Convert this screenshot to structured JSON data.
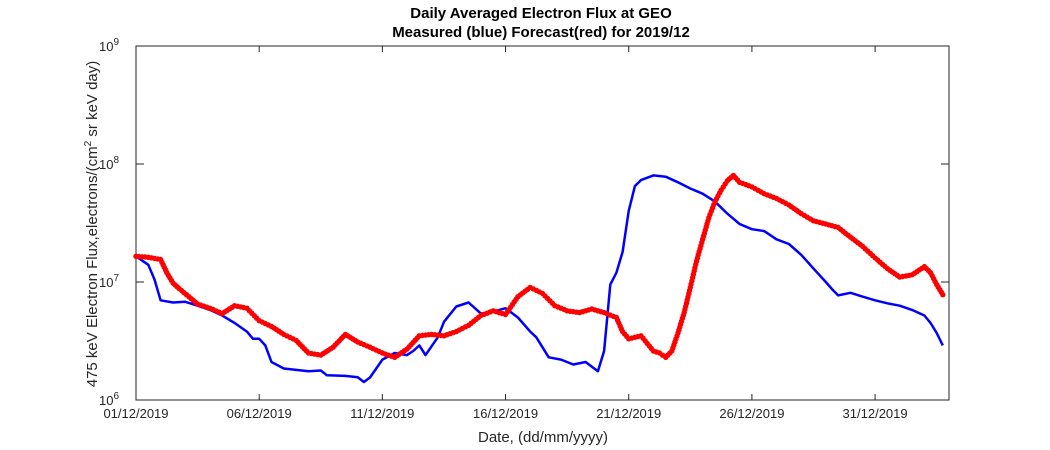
{
  "chart_data": {
    "type": "line",
    "title": "Daily Averaged Electron Flux at GEO",
    "subtitle": "Measured (blue) Forecast(red) for 2019/12",
    "xlabel": "Date, (dd/mm/yyyy)",
    "ylabel_parts": [
      "475 keV Electron Flux,electrons/(cm",
      "2",
      " sr keV day)"
    ],
    "xlim": [
      "2019-12-01",
      "2020-01-03"
    ],
    "ylim": [
      1000000,
      1000000000
    ],
    "yscale": "log",
    "grid": false,
    "xticks": [
      {
        "x": "2019-12-01",
        "label": "01/12/2019"
      },
      {
        "x": "2019-12-06",
        "label": "06/12/2019"
      },
      {
        "x": "2019-12-11",
        "label": "11/12/2019"
      },
      {
        "x": "2019-12-16",
        "label": "16/12/2019"
      },
      {
        "x": "2019-12-21",
        "label": "21/12/2019"
      },
      {
        "x": "2019-12-26",
        "label": "26/12/2019"
      },
      {
        "x": "2019-12-31",
        "label": "31/12/2019"
      }
    ],
    "yticks": [
      {
        "y": 1000000,
        "base": "10",
        "exp": "6"
      },
      {
        "y": 10000000,
        "base": "10",
        "exp": "7"
      },
      {
        "y": 100000000,
        "base": "10",
        "exp": "8"
      },
      {
        "y": 1000000000,
        "base": "10",
        "exp": "9"
      }
    ],
    "series": [
      {
        "name": "Measured",
        "color": "#0000ff",
        "style": "line",
        "points": [
          [
            "2019-12-01 00:00",
            16500000
          ],
          [
            "2019-12-01 12:00",
            14000000
          ],
          [
            "2019-12-01 18:00",
            10500000
          ],
          [
            "2019-12-02 00:00",
            7000000
          ],
          [
            "2019-12-02 12:00",
            6700000
          ],
          [
            "2019-12-03 00:00",
            6800000
          ],
          [
            "2019-12-03 12:00",
            6300000
          ],
          [
            "2019-12-04 00:00",
            5800000
          ],
          [
            "2019-12-04 12:00",
            5200000
          ],
          [
            "2019-12-05 00:00",
            4500000
          ],
          [
            "2019-12-05 12:00",
            3800000
          ],
          [
            "2019-12-05 18:00",
            3300000
          ],
          [
            "2019-12-06 00:00",
            3300000
          ],
          [
            "2019-12-06 06:00",
            2900000
          ],
          [
            "2019-12-06 12:00",
            2100000
          ],
          [
            "2019-12-07 00:00",
            1850000
          ],
          [
            "2019-12-07 12:00",
            1800000
          ],
          [
            "2019-12-08 00:00",
            1750000
          ],
          [
            "2019-12-08 12:00",
            1780000
          ],
          [
            "2019-12-08 18:00",
            1620000
          ],
          [
            "2019-12-09 12:00",
            1600000
          ],
          [
            "2019-12-10 00:00",
            1560000
          ],
          [
            "2019-12-10 06:00",
            1420000
          ],
          [
            "2019-12-10 12:00",
            1550000
          ],
          [
            "2019-12-11 00:00",
            2200000
          ],
          [
            "2019-12-11 12:00",
            2500000
          ],
          [
            "2019-12-12 00:00",
            2400000
          ],
          [
            "2019-12-12 06:00",
            2600000
          ],
          [
            "2019-12-12 12:00",
            2900000
          ],
          [
            "2019-12-12 18:00",
            2400000
          ],
          [
            "2019-12-13 06:00",
            3400000
          ],
          [
            "2019-12-13 12:00",
            4600000
          ],
          [
            "2019-12-14 00:00",
            6200000
          ],
          [
            "2019-12-14 12:00",
            6700000
          ],
          [
            "2019-12-15 00:00",
            5400000
          ],
          [
            "2019-12-15 12:00",
            5600000
          ],
          [
            "2019-12-16 00:00",
            6000000
          ],
          [
            "2019-12-16 12:00",
            5000000
          ],
          [
            "2019-12-17 00:00",
            3800000
          ],
          [
            "2019-12-17 06:00",
            3400000
          ],
          [
            "2019-12-17 18:00",
            2300000
          ],
          [
            "2019-12-18 06:00",
            2200000
          ],
          [
            "2019-12-18 18:00",
            2000000
          ],
          [
            "2019-12-19 06:00",
            2100000
          ],
          [
            "2019-12-19 18:00",
            1750000
          ],
          [
            "2019-12-20 00:00",
            2600000
          ],
          [
            "2019-12-20 06:00",
            9500000
          ],
          [
            "2019-12-20 12:00",
            12000000
          ],
          [
            "2019-12-20 18:00",
            18000000
          ],
          [
            "2019-12-21 00:00",
            40000000
          ],
          [
            "2019-12-21 06:00",
            65000000
          ],
          [
            "2019-12-21 12:00",
            73000000
          ],
          [
            "2019-12-22 00:00",
            80000000
          ],
          [
            "2019-12-22 12:00",
            78000000
          ],
          [
            "2019-12-23 00:00",
            70000000
          ],
          [
            "2019-12-23 12:00",
            62000000
          ],
          [
            "2019-12-24 00:00",
            56000000
          ],
          [
            "2019-12-24 12:00",
            48000000
          ],
          [
            "2019-12-25 00:00",
            38000000
          ],
          [
            "2019-12-25 12:00",
            31000000
          ],
          [
            "2019-12-26 00:00",
            28000000
          ],
          [
            "2019-12-26 12:00",
            27000000
          ],
          [
            "2019-12-27 00:00",
            23000000
          ],
          [
            "2019-12-27 12:00",
            21000000
          ],
          [
            "2019-12-28 00:00",
            17000000
          ],
          [
            "2019-12-28 12:00",
            13000000
          ],
          [
            "2019-12-29 00:00",
            10000000
          ],
          [
            "2019-12-29 06:00",
            8700000
          ],
          [
            "2019-12-29 12:00",
            7700000
          ],
          [
            "2019-12-30 00:00",
            8100000
          ],
          [
            "2019-12-30 12:00",
            7500000
          ],
          [
            "2019-12-31 00:00",
            7000000
          ],
          [
            "2019-12-31 12:00",
            6600000
          ],
          [
            "2020-01-01 00:00",
            6300000
          ],
          [
            "2020-01-01 12:00",
            5800000
          ],
          [
            "2020-01-02 00:00",
            5200000
          ],
          [
            "2020-01-02 06:00",
            4500000
          ],
          [
            "2020-01-02 12:00",
            3700000
          ],
          [
            "2020-01-02 18:00",
            2900000
          ]
        ]
      },
      {
        "name": "Forecast",
        "color": "#ff0000",
        "style": "dots",
        "points": [
          [
            "2019-12-01 00:00",
            16500000
          ],
          [
            "2019-12-01 12:00",
            16200000
          ],
          [
            "2019-12-02 00:00",
            15500000
          ],
          [
            "2019-12-02 06:00",
            12000000
          ],
          [
            "2019-12-02 12:00",
            9800000
          ],
          [
            "2019-12-02 18:00",
            8800000
          ],
          [
            "2019-12-03 06:00",
            7200000
          ],
          [
            "2019-12-03 12:00",
            6500000
          ],
          [
            "2019-12-04 00:00",
            6000000
          ],
          [
            "2019-12-04 12:00",
            5400000
          ],
          [
            "2019-12-05 00:00",
            6300000
          ],
          [
            "2019-12-05 12:00",
            6000000
          ],
          [
            "2019-12-06 00:00",
            4700000
          ],
          [
            "2019-12-06 12:00",
            4200000
          ],
          [
            "2019-12-07 00:00",
            3600000
          ],
          [
            "2019-12-07 12:00",
            3200000
          ],
          [
            "2019-12-08 00:00",
            2500000
          ],
          [
            "2019-12-08 12:00",
            2400000
          ],
          [
            "2019-12-09 00:00",
            2800000
          ],
          [
            "2019-12-09 12:00",
            3600000
          ],
          [
            "2019-12-10 00:00",
            3100000
          ],
          [
            "2019-12-10 12:00",
            2800000
          ],
          [
            "2019-12-11 00:00",
            2500000
          ],
          [
            "2019-12-11 12:00",
            2300000
          ],
          [
            "2019-12-12 00:00",
            2700000
          ],
          [
            "2019-12-12 12:00",
            3500000
          ],
          [
            "2019-12-13 00:00",
            3600000
          ],
          [
            "2019-12-13 12:00",
            3500000
          ],
          [
            "2019-12-14 00:00",
            3800000
          ],
          [
            "2019-12-14 12:00",
            4300000
          ],
          [
            "2019-12-15 00:00",
            5200000
          ],
          [
            "2019-12-15 12:00",
            5700000
          ],
          [
            "2019-12-16 00:00",
            5300000
          ],
          [
            "2019-12-16 12:00",
            7500000
          ],
          [
            "2019-12-17 00:00",
            9000000
          ],
          [
            "2019-12-17 12:00",
            8000000
          ],
          [
            "2019-12-18 00:00",
            6300000
          ],
          [
            "2019-12-18 12:00",
            5700000
          ],
          [
            "2019-12-19 00:00",
            5500000
          ],
          [
            "2019-12-19 12:00",
            5900000
          ],
          [
            "2019-12-20 00:00",
            5500000
          ],
          [
            "2019-12-20 12:00",
            5000000
          ],
          [
            "2019-12-20 18:00",
            3800000
          ],
          [
            "2019-12-21 00:00",
            3300000
          ],
          [
            "2019-12-21 12:00",
            3500000
          ],
          [
            "2019-12-22 00:00",
            2600000
          ],
          [
            "2019-12-22 06:00",
            2500000
          ],
          [
            "2019-12-22 12:00",
            2300000
          ],
          [
            "2019-12-22 18:00",
            2600000
          ],
          [
            "2019-12-23 00:00",
            3700000
          ],
          [
            "2019-12-23 06:00",
            5500000
          ],
          [
            "2019-12-23 12:00",
            9000000
          ],
          [
            "2019-12-23 18:00",
            15000000
          ],
          [
            "2019-12-24 00:00",
            23000000
          ],
          [
            "2019-12-24 06:00",
            35000000
          ],
          [
            "2019-12-24 12:00",
            48000000
          ],
          [
            "2019-12-24 18:00",
            60000000
          ],
          [
            "2019-12-25 00:00",
            72000000
          ],
          [
            "2019-12-25 06:00",
            80000000
          ],
          [
            "2019-12-25 12:00",
            70000000
          ],
          [
            "2019-12-26 00:00",
            64000000
          ],
          [
            "2019-12-26 12:00",
            56000000
          ],
          [
            "2019-12-27 00:00",
            51000000
          ],
          [
            "2019-12-27 12:00",
            45000000
          ],
          [
            "2019-12-28 00:00",
            38000000
          ],
          [
            "2019-12-28 12:00",
            33000000
          ],
          [
            "2019-12-29 00:00",
            31000000
          ],
          [
            "2019-12-29 12:00",
            29000000
          ],
          [
            "2019-12-30 00:00",
            24000000
          ],
          [
            "2019-12-30 12:00",
            20000000
          ],
          [
            "2019-12-31 00:00",
            16000000
          ],
          [
            "2019-12-31 12:00",
            13000000
          ],
          [
            "2020-01-01 00:00",
            11000000
          ],
          [
            "2020-01-01 12:00",
            11500000
          ],
          [
            "2020-01-02 00:00",
            13500000
          ],
          [
            "2020-01-02 06:00",
            12000000
          ],
          [
            "2020-01-02 12:00",
            9500000
          ],
          [
            "2020-01-02 18:00",
            7800000
          ]
        ]
      }
    ]
  }
}
